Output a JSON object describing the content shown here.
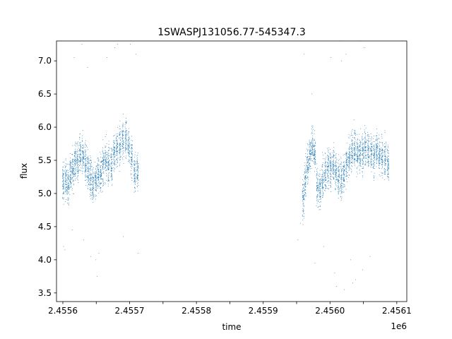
{
  "chart_data": {
    "type": "scatter",
    "title": "1SWASPJ131056.77-545347.3",
    "xlabel": "time",
    "ylabel": "flux",
    "x_offset_label": "1e6",
    "xlim": [
      2455600.5,
      2456125
    ],
    "ylim": [
      3.37,
      7.3
    ],
    "xticks": [
      2455610,
      2455660,
      2455710,
      2455760,
      2455810,
      2455860,
      2455910,
      2455960,
      2456010,
      2456060,
      2456110
    ],
    "xtick_labels": [
      "2.4556",
      "",
      "2.4557",
      "",
      "2.4558",
      "",
      "2.4559",
      "",
      "2.4560",
      "",
      "2.4561"
    ],
    "yticks": [
      3.5,
      4.0,
      4.5,
      5.0,
      5.5,
      6.0,
      6.5,
      7.0
    ],
    "ytick_labels": [
      "3.5",
      "4.0",
      "4.5",
      "5.0",
      "5.5",
      "6.0",
      "6.5",
      "7.0"
    ],
    "grid": false,
    "marker_color": "#1f77b4",
    "series": [
      {
        "nights": [
          [
            2455610.5,
            5.15
          ],
          [
            2455614.5,
            5.2
          ],
          [
            2455618.0,
            5.15
          ],
          [
            2455621.5,
            5.3
          ],
          [
            2455625.0,
            5.35
          ],
          [
            2455628.5,
            5.5
          ],
          [
            2455632.0,
            5.45
          ],
          [
            2455636.0,
            5.55
          ],
          [
            2455640.0,
            5.6
          ],
          [
            2455644.0,
            5.45
          ],
          [
            2455648.0,
            5.35
          ],
          [
            2455651.5,
            5.25
          ],
          [
            2455655.0,
            5.15
          ],
          [
            2455659.0,
            5.2
          ],
          [
            2455663.0,
            5.3
          ],
          [
            2455667.0,
            5.3
          ],
          [
            2455670.5,
            5.4
          ],
          [
            2455674.5,
            5.5
          ],
          [
            2455678.5,
            5.45
          ],
          [
            2455683.0,
            5.45
          ],
          [
            2455687.0,
            5.6
          ],
          [
            2455691.0,
            5.65
          ],
          [
            2455695.5,
            5.7
          ],
          [
            2455700.0,
            5.8
          ],
          [
            2455704.5,
            5.85
          ],
          [
            2455708.5,
            5.7
          ],
          [
            2455713.0,
            5.55
          ],
          [
            2455717.5,
            5.3
          ],
          [
            2455722.0,
            5.35
          ],
          [
            2455970.0,
            4.9
          ],
          [
            2455973.0,
            5.2
          ],
          [
            2455976.5,
            5.45
          ],
          [
            2455980.0,
            5.6
          ],
          [
            2455983.5,
            5.7
          ],
          [
            2455987.0,
            5.6
          ],
          [
            2455991.0,
            5.1
          ],
          [
            2455995.0,
            5.05
          ],
          [
            2455999.0,
            5.2
          ],
          [
            2456003.0,
            5.3
          ],
          [
            2456007.0,
            5.4
          ],
          [
            2456011.0,
            5.4
          ],
          [
            2456015.0,
            5.45
          ],
          [
            2456019.0,
            5.3
          ],
          [
            2456023.0,
            5.25
          ],
          [
            2456027.0,
            5.2
          ],
          [
            2456031.0,
            5.3
          ],
          [
            2456035.0,
            5.45
          ],
          [
            2456039.0,
            5.55
          ],
          [
            2456043.0,
            5.65
          ],
          [
            2456047.0,
            5.7
          ],
          [
            2456051.0,
            5.6
          ],
          [
            2456055.0,
            5.55
          ],
          [
            2456059.0,
            5.6
          ],
          [
            2456063.0,
            5.7
          ],
          [
            2456067.5,
            5.65
          ],
          [
            2456072.0,
            5.6
          ],
          [
            2456076.0,
            5.55
          ],
          [
            2456080.0,
            5.65
          ],
          [
            2456084.0,
            5.6
          ],
          [
            2456088.0,
            5.55
          ],
          [
            2456092.5,
            5.55
          ],
          [
            2456097.0,
            5.45
          ]
        ],
        "outliers": [
          [
            2455611.0,
            4.2
          ],
          [
            2455613.0,
            4.15
          ],
          [
            2455624.0,
            4.45
          ],
          [
            2455627.0,
            7.05
          ],
          [
            2455638.5,
            7.25
          ],
          [
            2455641.0,
            4.3
          ],
          [
            2455647.0,
            6.9
          ],
          [
            2455652.0,
            4.05
          ],
          [
            2455659.5,
            4.0
          ],
          [
            2455661.5,
            3.75
          ],
          [
            2455664.0,
            4.1
          ],
          [
            2455676.0,
            7.05
          ],
          [
            2455688.0,
            7.2
          ],
          [
            2455692.0,
            7.25
          ],
          [
            2455711.0,
            7.25
          ],
          [
            2455719.5,
            7.1
          ],
          [
            2455700.5,
            4.35
          ],
          [
            2455722.5,
            4.1
          ],
          [
            2455962.0,
            4.3
          ],
          [
            2455966.0,
            4.55
          ],
          [
            2455971.0,
            7.1
          ],
          [
            2455983.0,
            6.5
          ],
          [
            2455987.5,
            3.95
          ],
          [
            2456000.5,
            4.2
          ],
          [
            2456011.5,
            7.05
          ],
          [
            2456017.0,
            3.8
          ],
          [
            2456020.0,
            3.6
          ],
          [
            2456025.0,
            7.3
          ],
          [
            2456027.0,
            7.0
          ],
          [
            2456031.5,
            3.55
          ],
          [
            2456034.0,
            7.1
          ],
          [
            2456041.0,
            4.0
          ],
          [
            2456044.0,
            3.65
          ],
          [
            2456048.5,
            3.7
          ],
          [
            2456056.0,
            7.3
          ],
          [
            2456061.0,
            7.2
          ],
          [
            2456059.0,
            3.85
          ],
          [
            2456070.0,
            4.05
          ]
        ]
      }
    ]
  }
}
